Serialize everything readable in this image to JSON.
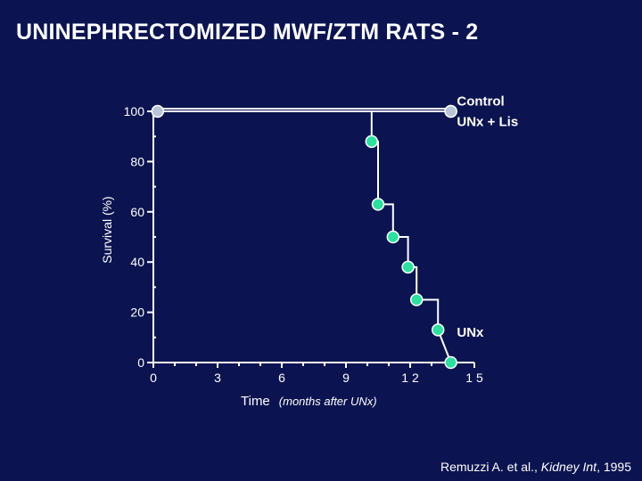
{
  "slide": {
    "title": "UNINEPHRECTOMIZED MWF/ZTM RATS - 2",
    "citation": {
      "authors": "Remuzzi A. et al., ",
      "journal": "Kidney Int",
      "year": ", 1995"
    }
  },
  "colors": {
    "background": "#0b1450",
    "control_marker": "#e0509a",
    "lis_marker": "#b8c4d8",
    "unx_marker": "#2ee0a0",
    "line": "#ffffff"
  },
  "chart_data": {
    "type": "line",
    "ylabel": "Survival (%)",
    "xlabel": "Time",
    "xlabel_note": "(months after UNx)",
    "xlim": [
      0,
      15
    ],
    "ylim": [
      0,
      100
    ],
    "x_ticks": [
      "0",
      "3",
      "6",
      "9",
      "1 2",
      "1 5"
    ],
    "x_tick_values": [
      0,
      3,
      6,
      9,
      12,
      15
    ],
    "y_ticks": [
      "0",
      "20",
      "40",
      "60",
      "80",
      "100"
    ],
    "y_tick_values": [
      0,
      20,
      40,
      60,
      80,
      100
    ],
    "series": [
      {
        "name": "Control",
        "step": true,
        "color_key": "control_marker",
        "x": [
          0,
          13.9
        ],
        "y": [
          100,
          100
        ],
        "markers": [
          [
            13.9,
            100
          ]
        ]
      },
      {
        "name": "UNx + Lis",
        "step": true,
        "color_key": "lis_marker",
        "x": [
          0,
          13.9
        ],
        "y": [
          100,
          100
        ],
        "markers": [
          [
            0.2,
            100
          ],
          [
            13.9,
            100
          ]
        ]
      },
      {
        "name": "UNx",
        "step": true,
        "color_key": "unx_marker",
        "x": [
          0,
          10.2,
          10.2,
          10.5,
          10.5,
          11.2,
          11.2,
          11.9,
          11.9,
          12.3,
          12.3,
          13.3,
          13.3,
          13.9
        ],
        "y": [
          100,
          100,
          88,
          88,
          63,
          63,
          50,
          50,
          38,
          38,
          25,
          25,
          13,
          0
        ],
        "markers": [
          [
            10.2,
            88
          ],
          [
            10.5,
            63
          ],
          [
            11.2,
            50
          ],
          [
            11.9,
            38
          ],
          [
            12.3,
            25
          ],
          [
            13.3,
            13
          ],
          [
            13.9,
            0
          ]
        ]
      }
    ],
    "annotations": [
      {
        "text": "Control",
        "x": 14.6,
        "y": 104
      },
      {
        "text": "UNx + Lis",
        "x": 14.6,
        "y": 96
      },
      {
        "text": "UNx",
        "x": 14.6,
        "y": 12
      }
    ]
  }
}
